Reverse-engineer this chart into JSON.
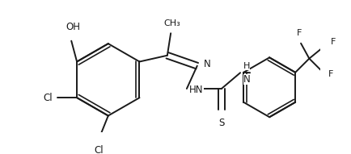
{
  "bg_color": "#ffffff",
  "line_color": "#1a1a1a",
  "text_color": "#1a1a1a",
  "bond_lw": 1.4,
  "font_size": 8.5,
  "xlim": [
    0,
    435
  ],
  "ylim": [
    0,
    191
  ]
}
